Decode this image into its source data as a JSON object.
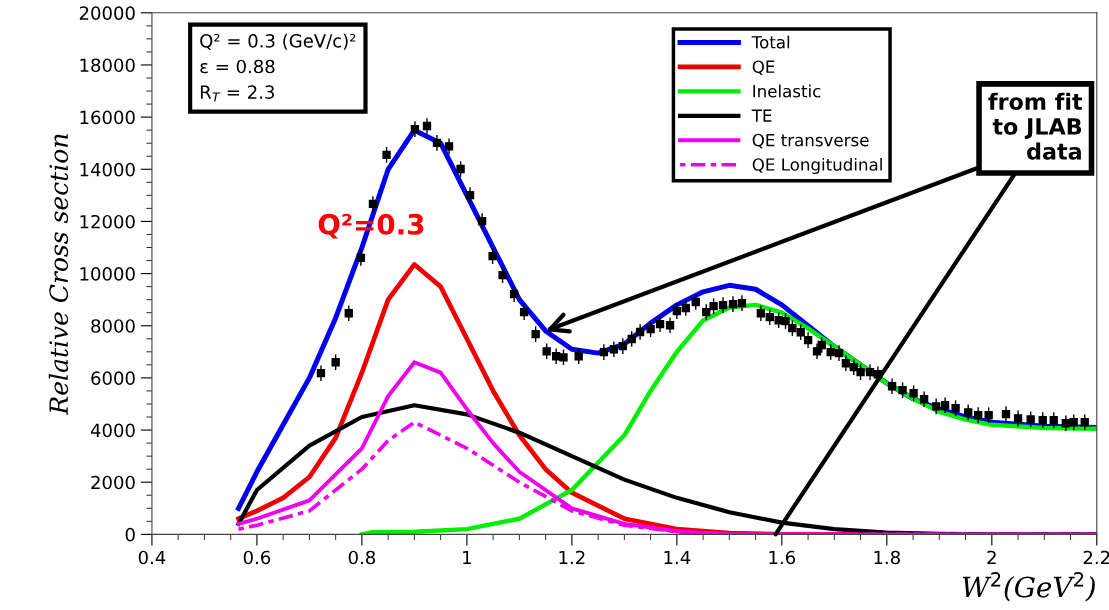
{
  "chart_data": {
    "type": "line",
    "xlabel": "W$^{2}$(GeV$^{2}$)",
    "ylabel": "Relative Cross section",
    "xlim": [
      0.4,
      2.2
    ],
    "ylim": [
      0,
      20000
    ],
    "xticks": [
      0.4,
      0.6,
      0.8,
      {
        "value": 1.0,
        "label": "1"
      },
      1.2,
      1.4,
      1.6,
      1.8,
      {
        "value": 2.0,
        "label": "2"
      },
      2.2
    ],
    "yticks": [
      0,
      2000,
      4000,
      6000,
      8000,
      10000,
      12000,
      14000,
      16000,
      18000,
      20000
    ],
    "grid": false,
    "legend": "top right",
    "marker": "none",
    "line_style": "solid",
    "series": [
      {
        "name": "Total",
        "color": "#0000ee",
        "x": [
          0.565,
          0.6,
          0.65,
          0.7,
          0.75,
          0.8,
          0.85,
          0.9,
          0.95,
          1.0,
          1.05,
          1.1,
          1.15,
          1.2,
          1.25,
          1.3,
          1.35,
          1.4,
          1.45,
          1.5,
          1.55,
          1.6,
          1.65,
          1.7,
          1.75,
          1.8,
          1.85,
          1.9,
          1.95,
          2.0,
          2.1,
          2.2
        ],
        "values": [
          1000,
          2400,
          4200,
          6000,
          8300,
          11000,
          14000,
          15500,
          15000,
          13000,
          11000,
          9000,
          7800,
          7100,
          6950,
          7300,
          8100,
          8800,
          9300,
          9550,
          9400,
          8800,
          8000,
          7200,
          6500,
          5800,
          5200,
          4800,
          4500,
          4300,
          4150,
          4100
        ]
      },
      {
        "name": "QE",
        "color": "#ee0000",
        "x": [
          0.565,
          0.6,
          0.65,
          0.7,
          0.75,
          0.8,
          0.85,
          0.9,
          0.95,
          1.0,
          1.05,
          1.1,
          1.15,
          1.2,
          1.3,
          1.4,
          1.5,
          1.6,
          2.2
        ],
        "values": [
          600,
          900,
          1400,
          2200,
          3700,
          6200,
          9000,
          10350,
          9500,
          7500,
          5500,
          3800,
          2500,
          1600,
          600,
          200,
          50,
          0,
          0
        ]
      },
      {
        "name": "Inelastic",
        "color": "#00ee00",
        "x": [
          0.8,
          0.82,
          0.9,
          1.0,
          1.1,
          1.2,
          1.3,
          1.35,
          1.4,
          1.45,
          1.5,
          1.55,
          1.6,
          1.65,
          1.7,
          1.75,
          1.8,
          1.85,
          1.9,
          1.95,
          2.0,
          2.1,
          2.2
        ],
        "values": [
          0,
          80,
          100,
          200,
          600,
          1700,
          3800,
          5500,
          7000,
          8200,
          8700,
          8800,
          8500,
          7900,
          7200,
          6500,
          5800,
          5200,
          4700,
          4400,
          4200,
          4080,
          4050
        ]
      },
      {
        "name": "TE",
        "color": "#000000",
        "x": [
          0.565,
          0.6,
          0.7,
          0.8,
          0.9,
          1.0,
          1.1,
          1.2,
          1.3,
          1.4,
          1.5,
          1.6,
          1.7,
          1.8,
          1.9,
          2.0,
          2.2
        ],
        "values": [
          400,
          1700,
          3400,
          4500,
          4950,
          4600,
          3900,
          3000,
          2100,
          1400,
          850,
          450,
          200,
          70,
          20,
          0,
          0
        ]
      },
      {
        "name": "QE transverse",
        "color": "#ee00ee",
        "x": [
          0.565,
          0.6,
          0.7,
          0.8,
          0.85,
          0.9,
          0.95,
          1.0,
          1.05,
          1.1,
          1.2,
          1.3,
          1.4,
          1.5,
          2.2
        ],
        "values": [
          400,
          600,
          1300,
          3300,
          5300,
          6600,
          6200,
          4800,
          3500,
          2400,
          1000,
          400,
          120,
          0,
          0
        ]
      },
      {
        "name": "QE Longitudinal",
        "color": "#ee00ee",
        "line_style": "dotted",
        "x": [
          0.565,
          0.6,
          0.7,
          0.8,
          0.85,
          0.9,
          1.0,
          1.1,
          1.2,
          1.3,
          1.4,
          1.5,
          2.2
        ],
        "values": [
          200,
          350,
          900,
          2500,
          3600,
          4300,
          3300,
          2000,
          900,
          350,
          100,
          0,
          0
        ]
      },
      {
        "type": "scatter",
        "marker": "square",
        "color": "#000000",
        "x": [
          0.722,
          0.75,
          0.775,
          0.798,
          0.821,
          0.847,
          0.901,
          0.924,
          0.943,
          0.966,
          0.988,
          1.006,
          1.029,
          1.049,
          1.068,
          1.09,
          1.109,
          1.131,
          1.152,
          1.17,
          1.184,
          1.213,
          1.261,
          1.28,
          1.297,
          1.314,
          1.33,
          1.35,
          1.368,
          1.387,
          1.4,
          1.417,
          1.436,
          1.456,
          1.47,
          1.488,
          1.507,
          1.524,
          1.56,
          1.577,
          1.594,
          1.607,
          1.62,
          1.636,
          1.65,
          1.667,
          1.676,
          1.693,
          1.709,
          1.722,
          1.737,
          1.75,
          1.768,
          1.783,
          1.81,
          1.83,
          1.851,
          1.871,
          1.894,
          1.911,
          1.931,
          1.955,
          1.974,
          1.994,
          2.027,
          2.05,
          2.074,
          2.097,
          2.118,
          2.141,
          2.156,
          2.177
        ],
        "values": [
          6180,
          6600,
          8480,
          10600,
          12670,
          14550,
          15540,
          15660,
          15010,
          14880,
          14010,
          13010,
          12010,
          10670,
          9940,
          9210,
          8520,
          7680,
          7020,
          6830,
          6790,
          6830,
          6990,
          7100,
          7220,
          7490,
          7760,
          7870,
          8060,
          8020,
          8560,
          8680,
          8910,
          8520,
          8750,
          8790,
          8830,
          8870,
          8480,
          8330,
          8210,
          8180,
          7910,
          7750,
          7450,
          7020,
          7260,
          6990,
          6950,
          6560,
          6410,
          6220,
          6220,
          6140,
          5680,
          5530,
          5410,
          5180,
          4910,
          4950,
          4840,
          4680,
          4570,
          4570,
          4610,
          4450,
          4410,
          4380,
          4380,
          4260,
          4300,
          4300
        ],
        "errors": [
          300,
          300,
          300,
          300,
          300,
          300,
          300,
          300,
          300,
          300,
          300,
          300,
          300,
          300,
          300,
          300,
          300,
          300,
          300,
          300,
          300,
          300,
          300,
          300,
          300,
          300,
          300,
          300,
          300,
          300,
          300,
          300,
          300,
          300,
          300,
          300,
          300,
          300,
          300,
          300,
          300,
          300,
          300,
          300,
          300,
          300,
          300,
          300,
          300,
          300,
          300,
          300,
          300,
          300,
          300,
          300,
          300,
          300,
          300,
          300,
          300,
          300,
          300,
          300,
          300,
          300,
          300,
          300,
          300,
          300,
          300,
          300
        ]
      }
    ],
    "annotations": [
      "Q² = 0.3 (GeV/c)²\nε = 0.88\nR$_{T}$ = 2.3",
      "Q²=0.3",
      {
        "text": "from fit\nto JLAB\ndata",
        "x": 1.15,
        "y": 7800
      }
    ]
  }
}
